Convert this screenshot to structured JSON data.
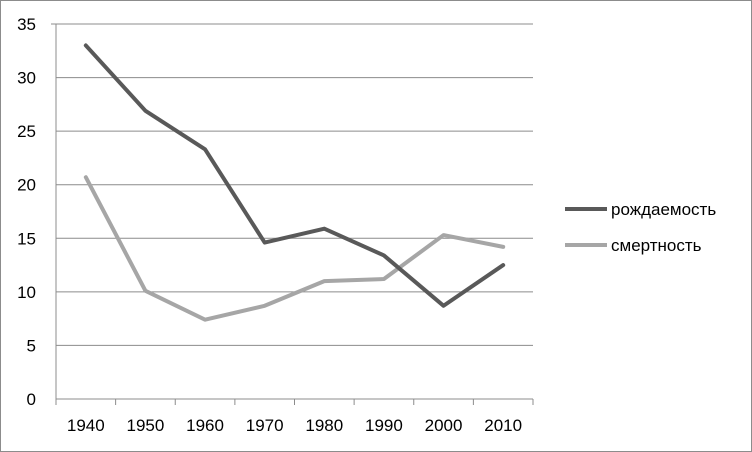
{
  "chart_data": {
    "type": "line",
    "categories": [
      "1940",
      "1950",
      "1960",
      "1970",
      "1980",
      "1990",
      "2000",
      "2010"
    ],
    "ylim": [
      0,
      35
    ],
    "yticks": [
      "0",
      "5",
      "10",
      "15",
      "20",
      "25",
      "30",
      "35"
    ],
    "grid": true,
    "legend_position": "right",
    "series": [
      {
        "name": "рождаемость",
        "color": "#595959",
        "values": [
          33.0,
          26.9,
          23.3,
          14.6,
          15.9,
          13.4,
          8.7,
          12.5
        ]
      },
      {
        "name": "смертность",
        "color": "#a6a6a6",
        "values": [
          20.7,
          10.1,
          7.4,
          8.7,
          11.0,
          11.2,
          15.3,
          14.2
        ]
      }
    ]
  }
}
